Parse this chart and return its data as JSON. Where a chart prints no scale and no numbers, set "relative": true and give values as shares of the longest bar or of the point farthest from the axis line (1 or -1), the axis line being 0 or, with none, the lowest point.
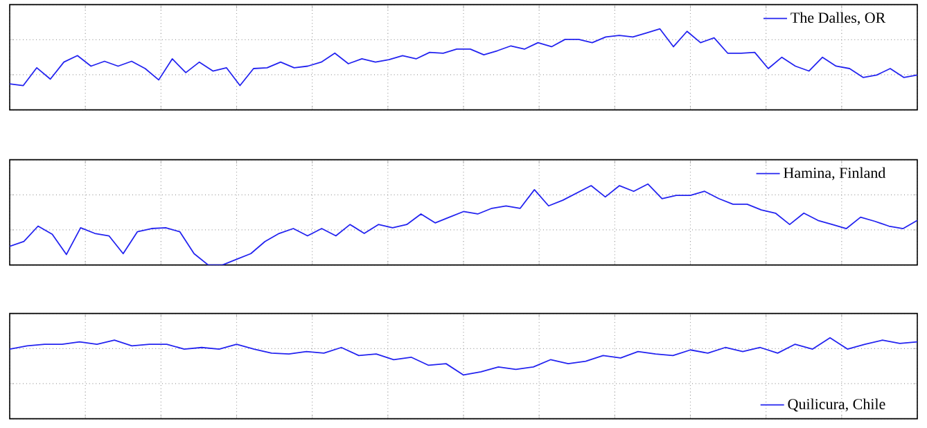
{
  "chart_data": [
    {
      "type": "line",
      "relative": true,
      "grid": true,
      "legend": "top right",
      "categories": [
        null,
        null,
        null,
        null,
        null,
        null,
        null,
        null,
        null,
        null,
        null,
        null,
        null,
        null,
        null,
        null,
        null,
        null,
        null,
        null,
        null,
        null,
        null,
        null,
        null,
        null,
        null,
        null,
        null,
        null,
        null,
        null,
        null,
        null,
        null,
        null,
        null,
        null,
        null,
        null,
        null,
        null,
        null,
        null,
        null,
        null,
        null,
        null,
        null,
        null,
        null,
        null,
        null,
        null,
        null,
        null,
        null,
        null,
        null,
        null,
        null,
        null,
        null,
        null,
        null,
        null,
        null,
        null
      ],
      "series": [
        {
          "name": "The Dalles, OR",
          "color": "#2323f0",
          "values": [
            0.32,
            0.3,
            0.52,
            0.38,
            0.59,
            0.67,
            0.54,
            0.6,
            0.54,
            0.6,
            0.51,
            0.37,
            0.63,
            0.46,
            0.59,
            0.48,
            0.52,
            0.3,
            0.51,
            0.52,
            0.59,
            0.52,
            0.54,
            0.59,
            0.7,
            0.57,
            0.63,
            0.59,
            0.62,
            0.67,
            0.63,
            0.71,
            0.7,
            0.75,
            0.75,
            0.68,
            0.73,
            0.79,
            0.75,
            0.83,
            0.78,
            0.87,
            0.87,
            0.83,
            0.9,
            0.92,
            0.9,
            0.95,
            1,
            0.78,
            0.97,
            0.83,
            0.89,
            0.7,
            0.7,
            0.71,
            0.51,
            0.65,
            0.54,
            0.48,
            0.65,
            0.54,
            0.51,
            0.4,
            0.43,
            0.51,
            0.4,
            0.43
          ]
        }
      ]
    },
    {
      "type": "line",
      "relative": true,
      "grid": true,
      "legend": "top right",
      "categories": [
        null,
        null,
        null,
        null,
        null,
        null,
        null,
        null,
        null,
        null,
        null,
        null,
        null,
        null,
        null,
        null,
        null,
        null,
        null,
        null,
        null,
        null,
        null,
        null,
        null,
        null,
        null,
        null,
        null,
        null,
        null,
        null,
        null,
        null,
        null,
        null,
        null,
        null,
        null,
        null,
        null,
        null,
        null,
        null,
        null,
        null,
        null,
        null,
        null,
        null,
        null,
        null,
        null,
        null,
        null,
        null,
        null,
        null,
        null,
        null,
        null,
        null,
        null,
        null,
        null
      ],
      "series": [
        {
          "name": "Hamina, Finland",
          "color": "#2323f0",
          "values": [
            0.23,
            0.29,
            0.48,
            0.38,
            0.13,
            0.46,
            0.39,
            0.36,
            0.14,
            0.41,
            0.45,
            0.46,
            0.41,
            0.14,
            0,
            0,
            0.07,
            0.14,
            0.29,
            0.39,
            0.45,
            0.36,
            0.45,
            0.36,
            0.5,
            0.39,
            0.5,
            0.46,
            0.5,
            0.63,
            0.52,
            0.59,
            0.66,
            0.63,
            0.7,
            0.73,
            0.7,
            0.93,
            0.73,
            0.8,
            0.89,
            0.98,
            0.84,
            0.98,
            0.91,
            1,
            0.82,
            0.86,
            0.86,
            0.91,
            0.82,
            0.75,
            0.75,
            0.68,
            0.64,
            0.5,
            0.64,
            0.55,
            0.5,
            0.45,
            0.59,
            0.54,
            0.48,
            0.45,
            0.55
          ]
        }
      ]
    },
    {
      "type": "line",
      "relative": true,
      "grid": true,
      "legend": "bottom right",
      "categories": [
        null,
        null,
        null,
        null,
        null,
        null,
        null,
        null,
        null,
        null,
        null,
        null,
        null,
        null,
        null,
        null,
        null,
        null,
        null,
        null,
        null,
        null,
        null,
        null,
        null,
        null,
        null,
        null,
        null,
        null,
        null,
        null,
        null,
        null,
        null,
        null,
        null,
        null,
        null,
        null,
        null,
        null,
        null,
        null,
        null,
        null,
        null,
        null,
        null,
        null,
        null,
        null,
        null
      ],
      "series": [
        {
          "name": "Quilicura, Chile",
          "color": "#2323f0",
          "values": [
            0.86,
            0.9,
            0.92,
            0.92,
            0.95,
            0.92,
            0.97,
            0.9,
            0.92,
            0.92,
            0.86,
            0.88,
            0.86,
            0.92,
            0.86,
            0.81,
            0.8,
            0.83,
            0.81,
            0.88,
            0.78,
            0.8,
            0.73,
            0.76,
            0.66,
            0.68,
            0.54,
            0.58,
            0.64,
            0.61,
            0.64,
            0.73,
            0.68,
            0.71,
            0.78,
            0.75,
            0.83,
            0.8,
            0.78,
            0.85,
            0.81,
            0.88,
            0.83,
            0.88,
            0.81,
            0.92,
            0.86,
            1,
            0.86,
            0.92,
            0.97,
            0.93,
            0.95
          ]
        }
      ]
    }
  ]
}
